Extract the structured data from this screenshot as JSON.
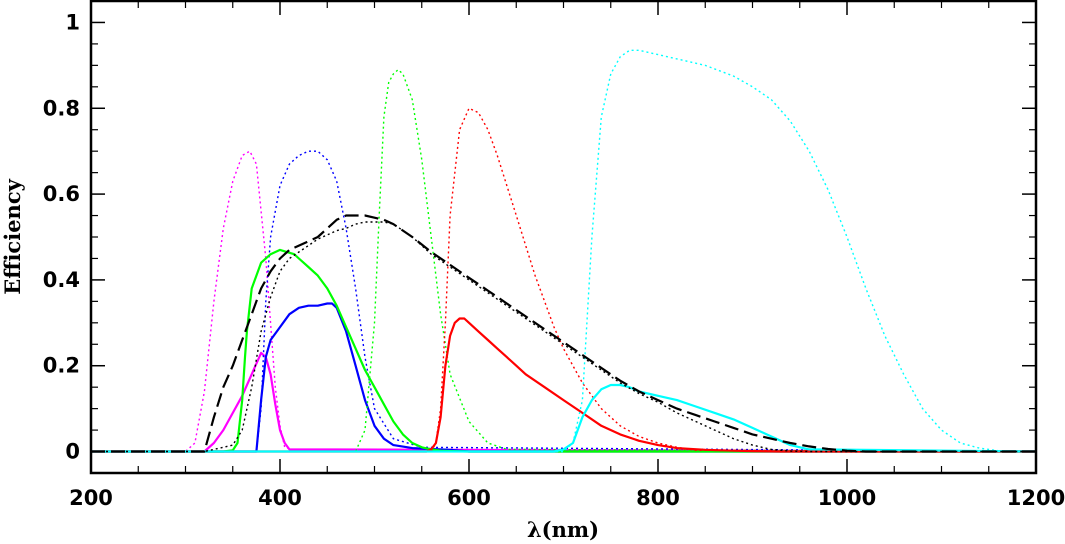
{
  "chart_data": {
    "type": "line",
    "title": "",
    "xlabel": "λ(nm)",
    "ylabel": "Efficiency",
    "xlim": [
      200,
      1200
    ],
    "ylim": [
      -0.05,
      1.05
    ],
    "xticks": [
      200,
      400,
      600,
      800,
      1000,
      1200
    ],
    "xtick_labels": [
      "200",
      "400",
      "600",
      "800",
      "1000",
      "1200"
    ],
    "yticks": [
      0,
      0.2,
      0.4,
      0.6,
      0.8,
      1
    ],
    "ytick_labels": [
      "0",
      "0.2",
      "0.4",
      "0.6",
      "0.8",
      "1"
    ],
    "grid": false,
    "series": [
      {
        "color": "#ff00ff",
        "style": "dotted",
        "x": [
          200,
          300,
          310,
          320,
          330,
          340,
          350,
          360,
          368,
          375,
          385,
          395,
          400,
          405,
          420,
          1200
        ],
        "y": [
          0,
          0,
          0.02,
          0.14,
          0.35,
          0.52,
          0.63,
          0.69,
          0.7,
          0.67,
          0.45,
          0.15,
          0.06,
          0.01,
          0,
          0
        ]
      },
      {
        "color": "#ff00ff",
        "style": "solid",
        "x": [
          200,
          320,
          330,
          340,
          350,
          360,
          370,
          380,
          385,
          390,
          395,
          400,
          405,
          410,
          1200
        ],
        "y": [
          0,
          0,
          0.02,
          0.05,
          0.09,
          0.13,
          0.18,
          0.23,
          0.22,
          0.18,
          0.11,
          0.05,
          0.02,
          0.005,
          0
        ]
      },
      {
        "color": "#0000ff",
        "style": "dotted",
        "x": [
          200,
          375,
          380,
          385,
          390,
          400,
          410,
          420,
          430,
          440,
          450,
          460,
          470,
          480,
          490,
          500,
          520,
          550,
          1200
        ],
        "y": [
          0,
          0,
          0.1,
          0.35,
          0.5,
          0.62,
          0.67,
          0.69,
          0.7,
          0.7,
          0.68,
          0.63,
          0.52,
          0.38,
          0.22,
          0.1,
          0.03,
          0.01,
          0
        ]
      },
      {
        "color": "#0000ff",
        "style": "solid",
        "x": [
          200,
          375,
          380,
          385,
          390,
          400,
          410,
          420,
          430,
          440,
          450,
          455,
          460,
          470,
          480,
          490,
          500,
          510,
          520,
          540,
          560,
          580,
          600,
          1200
        ],
        "y": [
          0,
          0,
          0.12,
          0.22,
          0.26,
          0.29,
          0.32,
          0.335,
          0.34,
          0.34,
          0.345,
          0.345,
          0.335,
          0.28,
          0.2,
          0.12,
          0.06,
          0.03,
          0.015,
          0.008,
          0.006,
          0.004,
          0,
          0
        ]
      },
      {
        "color": "#00ff00",
        "style": "dotted",
        "x": [
          200,
          480,
          490,
          500,
          505,
          510,
          515,
          520,
          525,
          530,
          540,
          550,
          560,
          570,
          580,
          600,
          620,
          640,
          1200
        ],
        "y": [
          0,
          0,
          0.05,
          0.3,
          0.55,
          0.78,
          0.86,
          0.88,
          0.89,
          0.88,
          0.82,
          0.68,
          0.5,
          0.32,
          0.18,
          0.07,
          0.02,
          0.005,
          0
        ]
      },
      {
        "color": "#00ff00",
        "style": "solid",
        "x": [
          200,
          340,
          350,
          355,
          360,
          363,
          365,
          370,
          380,
          390,
          400,
          415,
          420,
          425,
          430,
          440,
          450,
          460,
          470,
          480,
          490,
          500,
          510,
          520,
          530,
          540,
          550,
          560,
          570,
          580,
          600,
          620,
          650,
          1200
        ],
        "y": [
          0,
          0,
          0.003,
          0.02,
          0.12,
          0.22,
          0.28,
          0.38,
          0.44,
          0.46,
          0.47,
          0.46,
          0.45,
          0.44,
          0.43,
          0.41,
          0.38,
          0.34,
          0.29,
          0.24,
          0.19,
          0.15,
          0.11,
          0.07,
          0.04,
          0.02,
          0.01,
          0.005,
          0.002,
          0.001,
          0,
          0,
          0,
          0
        ]
      },
      {
        "color": "#ff0000",
        "style": "dotted",
        "x": [
          200,
          560,
          565,
          570,
          575,
          580,
          590,
          600,
          610,
          620,
          630,
          640,
          650,
          660,
          670,
          680,
          690,
          700,
          720,
          740,
          760,
          780,
          800,
          820,
          840,
          1200
        ],
        "y": [
          0,
          0,
          0.02,
          0.1,
          0.3,
          0.55,
          0.75,
          0.8,
          0.79,
          0.75,
          0.69,
          0.62,
          0.55,
          0.48,
          0.41,
          0.35,
          0.29,
          0.24,
          0.16,
          0.1,
          0.06,
          0.035,
          0.02,
          0.01,
          0.003,
          0
        ]
      },
      {
        "color": "#ff0000",
        "style": "solid",
        "x": [
          200,
          555,
          560,
          565,
          570,
          575,
          580,
          585,
          590,
          595,
          600,
          610,
          620,
          630,
          640,
          650,
          660,
          680,
          700,
          720,
          740,
          760,
          780,
          800,
          820,
          850,
          880,
          900,
          930,
          1200
        ],
        "y": [
          0,
          0,
          0.005,
          0.02,
          0.08,
          0.2,
          0.27,
          0.3,
          0.31,
          0.31,
          0.3,
          0.28,
          0.26,
          0.24,
          0.22,
          0.2,
          0.18,
          0.15,
          0.12,
          0.09,
          0.06,
          0.04,
          0.025,
          0.015,
          0.008,
          0.004,
          0.002,
          0.001,
          0,
          0
        ]
      },
      {
        "color": "#00ffff",
        "style": "dotted",
        "x": [
          200,
          700,
          710,
          720,
          730,
          740,
          750,
          760,
          770,
          780,
          800,
          820,
          850,
          880,
          900,
          920,
          940,
          960,
          980,
          1000,
          1020,
          1040,
          1060,
          1080,
          1100,
          1120,
          1140,
          1160,
          1180,
          1200
        ],
        "y": [
          0,
          0,
          0.02,
          0.12,
          0.5,
          0.78,
          0.88,
          0.92,
          0.935,
          0.935,
          0.925,
          0.915,
          0.9,
          0.875,
          0.85,
          0.82,
          0.77,
          0.7,
          0.61,
          0.5,
          0.38,
          0.27,
          0.18,
          0.1,
          0.05,
          0.02,
          0.008,
          0.002,
          0,
          0
        ]
      },
      {
        "color": "#00ffff",
        "style": "solid",
        "x": [
          200,
          690,
          700,
          710,
          720,
          730,
          740,
          750,
          760,
          770,
          780,
          800,
          820,
          840,
          860,
          880,
          900,
          920,
          940,
          960,
          1200
        ],
        "y": [
          0,
          0,
          0.005,
          0.02,
          0.08,
          0.12,
          0.145,
          0.155,
          0.155,
          0.15,
          0.14,
          0.13,
          0.12,
          0.105,
          0.09,
          0.075,
          0.055,
          0.035,
          0.015,
          0.005,
          0
        ]
      },
      {
        "color": "#000000",
        "style": "dashed",
        "x": [
          200,
          320,
          330,
          340,
          350,
          360,
          370,
          380,
          390,
          400,
          410,
          420,
          430,
          440,
          450,
          460,
          470,
          480,
          490,
          500,
          510,
          520,
          540,
          560,
          580,
          600,
          620,
          640,
          660,
          680,
          700,
          720,
          740,
          760,
          780,
          800,
          820,
          840,
          860,
          880,
          900,
          920,
          940,
          960,
          980,
          1000,
          1020,
          1200
        ],
        "y": [
          0,
          0,
          0.08,
          0.15,
          0.2,
          0.26,
          0.32,
          0.38,
          0.42,
          0.45,
          0.47,
          0.48,
          0.49,
          0.5,
          0.52,
          0.54,
          0.55,
          0.55,
          0.55,
          0.545,
          0.54,
          0.53,
          0.5,
          0.465,
          0.435,
          0.405,
          0.375,
          0.345,
          0.315,
          0.285,
          0.255,
          0.225,
          0.195,
          0.165,
          0.14,
          0.12,
          0.1,
          0.085,
          0.07,
          0.055,
          0.04,
          0.03,
          0.02,
          0.012,
          0.006,
          0.002,
          0,
          0
        ]
      },
      {
        "color": "#000000",
        "style": "dotted",
        "x": [
          200,
          320,
          330,
          340,
          350,
          360,
          370,
          380,
          390,
          400,
          410,
          420,
          430,
          440,
          450,
          460,
          470,
          480,
          490,
          500,
          510,
          520,
          540,
          560,
          580,
          600,
          620,
          640,
          660,
          680,
          700,
          720,
          740,
          760,
          780,
          800,
          820,
          840,
          860,
          880,
          900,
          920,
          940,
          960,
          1200
        ],
        "y": [
          0,
          0,
          0.005,
          0.01,
          0.015,
          0.05,
          0.15,
          0.28,
          0.36,
          0.42,
          0.45,
          0.465,
          0.48,
          0.495,
          0.505,
          0.515,
          0.52,
          0.53,
          0.535,
          0.535,
          0.535,
          0.53,
          0.5,
          0.46,
          0.43,
          0.4,
          0.37,
          0.34,
          0.31,
          0.28,
          0.25,
          0.22,
          0.19,
          0.16,
          0.135,
          0.115,
          0.09,
          0.07,
          0.05,
          0.03,
          0.015,
          0.005,
          0.001,
          0,
          0
        ]
      }
    ]
  }
}
